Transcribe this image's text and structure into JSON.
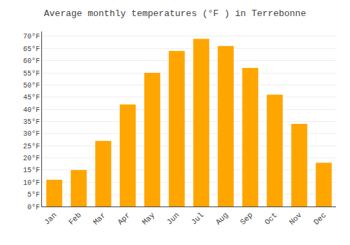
{
  "chart_data": {
    "type": "bar",
    "title": "Average monthly temperatures (°F ) in Terrebonne",
    "categories": [
      "Jan",
      "Feb",
      "Mar",
      "Apr",
      "May",
      "Jun",
      "Jul",
      "Aug",
      "Sep",
      "Oct",
      "Nov",
      "Dec"
    ],
    "values": [
      11,
      15,
      27,
      42,
      55,
      64,
      69,
      66,
      57,
      46,
      34,
      18
    ],
    "color": "#FFA500",
    "ylim": [
      0,
      72
    ],
    "yticks": [
      {
        "value": 0,
        "label": "0°F"
      },
      {
        "value": 5,
        "label": "5°F"
      },
      {
        "value": 10,
        "label": "10°F"
      },
      {
        "value": 15,
        "label": "15°F"
      },
      {
        "value": 20,
        "label": "20°F"
      },
      {
        "value": 25,
        "label": "25°F"
      },
      {
        "value": 30,
        "label": "30°F"
      },
      {
        "value": 35,
        "label": "35°F"
      },
      {
        "value": 40,
        "label": "40°F"
      },
      {
        "value": 45,
        "label": "45°F"
      },
      {
        "value": 50,
        "label": "50°F"
      },
      {
        "value": 55,
        "label": "55°F"
      },
      {
        "value": 60,
        "label": "60°F"
      },
      {
        "value": 65,
        "label": "65°F"
      },
      {
        "value": 70,
        "label": "70°F"
      }
    ],
    "grid": true
  }
}
